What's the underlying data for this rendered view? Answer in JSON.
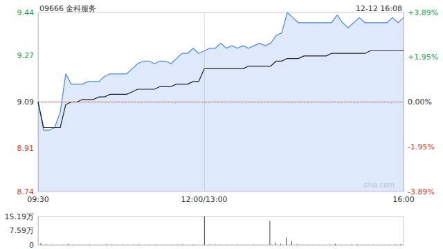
{
  "chart_data": [
    {
      "type": "line",
      "title": "09666 金科服务",
      "timestamp": "12-12 16:08",
      "watermark": "sina.com",
      "categories": [
        "09:30",
        null,
        null,
        null,
        null,
        null,
        null,
        null,
        null,
        null,
        null,
        null,
        null,
        null,
        null,
        null,
        null,
        null,
        null,
        null,
        null,
        null,
        null,
        null,
        null,
        null,
        null,
        null,
        null,
        null,
        "12:00/13:00",
        null,
        null,
        null,
        null,
        null,
        null,
        null,
        null,
        null,
        null,
        null,
        null,
        null,
        null,
        null,
        null,
        null,
        null,
        null,
        null,
        null,
        null,
        null,
        null,
        null,
        null,
        null,
        null,
        null,
        null,
        null,
        null,
        null,
        null,
        null,
        "16:00"
      ],
      "series": [
        {
          "type": "area",
          "color": "#4a86e8",
          "values": [
            9.09,
            8.98,
            8.98,
            8.99,
            9.05,
            9.2,
            9.16,
            9.16,
            9.16,
            9.17,
            9.17,
            9.17,
            9.19,
            9.2,
            9.2,
            9.2,
            9.2,
            9.22,
            9.24,
            9.25,
            9.25,
            9.24,
            9.25,
            9.25,
            9.24,
            9.26,
            9.28,
            9.28,
            9.3,
            9.28,
            9.29,
            9.3,
            9.3,
            9.32,
            9.3,
            9.31,
            9.3,
            9.31,
            9.3,
            9.31,
            9.32,
            9.31,
            9.32,
            9.35,
            9.36,
            9.44,
            9.42,
            9.4,
            9.4,
            9.4,
            9.4,
            9.4,
            9.4,
            9.4,
            9.43,
            9.4,
            9.38,
            9.4,
            9.42,
            9.4,
            9.4,
            9.4,
            9.4,
            9.4,
            9.42,
            9.4,
            9.42
          ]
        },
        {
          "type": "line",
          "color": "#222222",
          "values": [
            9.09,
            8.99,
            8.99,
            8.99,
            8.99,
            9.08,
            9.09,
            9.09,
            9.1,
            9.1,
            9.1,
            9.11,
            9.11,
            9.12,
            9.12,
            9.12,
            9.12,
            9.13,
            9.14,
            9.14,
            9.14,
            9.14,
            9.15,
            9.15,
            9.15,
            9.16,
            9.16,
            9.16,
            9.17,
            9.17,
            9.22,
            9.22,
            9.22,
            9.22,
            9.22,
            9.22,
            9.22,
            9.22,
            9.23,
            9.23,
            9.23,
            9.23,
            9.23,
            9.25,
            9.25,
            9.26,
            9.26,
            9.26,
            9.27,
            9.27,
            9.27,
            9.27,
            9.27,
            9.28,
            9.28,
            9.28,
            9.28,
            9.28,
            9.28,
            9.28,
            9.29,
            9.29,
            9.29,
            9.29,
            9.29,
            9.29,
            9.29
          ]
        }
      ],
      "reference_line": 9.09,
      "ylim": [
        8.74,
        9.44
      ],
      "yticks": [
        8.74,
        8.91,
        9.09,
        9.27,
        9.44
      ],
      "y2lim": [
        -3.89,
        3.89
      ],
      "y2ticks": [
        {
          "value": -3.89,
          "label": "-3.89%"
        },
        {
          "value": -1.95,
          "label": "-1.95%"
        },
        {
          "value": 0,
          "label": "0.00%"
        },
        {
          "value": 1.95,
          "label": "+1.95%"
        },
        {
          "value": 3.89,
          "label": "+3.89%"
        }
      ],
      "grid": false
    },
    {
      "type": "bar",
      "color": "#444444",
      "tick_labels": "y",
      "values": [
        9000,
        3000,
        2000,
        1000,
        2000,
        6000,
        2000,
        1000,
        1000,
        2000,
        1000,
        1000,
        3000,
        2000,
        1000,
        2000,
        1000,
        2000,
        3000,
        1000,
        1000,
        2000,
        1000,
        1000,
        1000,
        2000,
        3000,
        1000,
        2000,
        1000,
        151900,
        3000,
        2000,
        2000,
        1000,
        1000,
        2000,
        1000,
        1000,
        2000,
        1000,
        1000,
        130000,
        12000,
        6000,
        40000,
        20000,
        3000,
        2000,
        1000,
        2000,
        1000,
        1000,
        2000,
        5000,
        2000,
        1000,
        2000,
        3000,
        1000,
        1000,
        2000,
        1000,
        1000,
        2000,
        3000,
        4000
      ],
      "ylim": [
        0,
        151900
      ],
      "yticks": [
        0,
        {
          "value": 75900,
          "label": "7.59万"
        },
        {
          "value": 151900,
          "label": "15.19万"
        }
      ],
      "grid": false
    }
  ]
}
